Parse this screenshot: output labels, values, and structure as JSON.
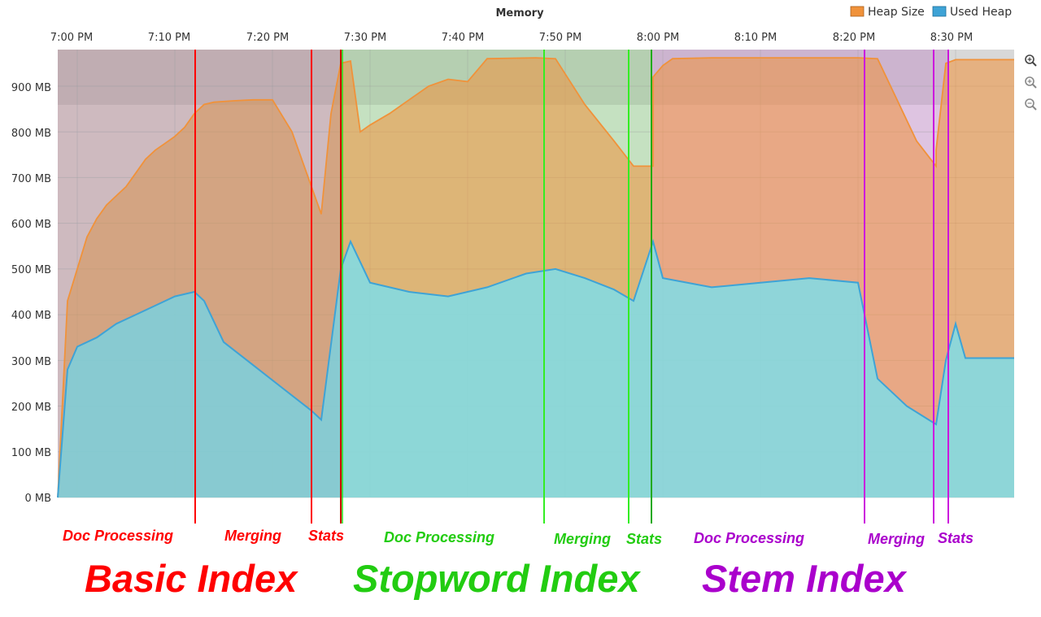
{
  "colors": {
    "heap": "#f0923a",
    "used": "#3ea3d6",
    "basic": "#ff0000",
    "stopword": "#22bb11",
    "stem": "#aa00cc"
  },
  "toolbar": {
    "icons": [
      "zoom-in-icon",
      "zoom-in-icon",
      "zoom-out-icon"
    ]
  },
  "chart_data": {
    "type": "area",
    "title": "Memory",
    "legend": [
      "Heap Size",
      "Used Heap"
    ],
    "legend_position": "top-right",
    "grid": true,
    "x_ticks": [
      "7:00 PM",
      "7:10 PM",
      "7:20 PM",
      "7:30 PM",
      "7:40 PM",
      "7:50 PM",
      "8:00 PM",
      "8:10 PM",
      "8:20 PM",
      "8:30 PM"
    ],
    "y_ticks": [
      "0 MB",
      "100 MB",
      "200 MB",
      "300 MB",
      "400 MB",
      "500 MB",
      "600 MB",
      "700 MB",
      "800 MB",
      "900 MB"
    ],
    "xlim": [
      "6:58 PM",
      "8:36 PM"
    ],
    "ylim": [
      0,
      980
    ],
    "y_unit": "MB",
    "series": [
      {
        "name": "Heap Size",
        "points": [
          [
            "6:58 PM",
            0
          ],
          [
            "6:59 PM",
            430
          ],
          [
            "7:00 PM",
            500
          ],
          [
            "7:01 PM",
            570
          ],
          [
            "7:02 PM",
            610
          ],
          [
            "7:03 PM",
            640
          ],
          [
            "7:04 PM",
            660
          ],
          [
            "7:05 PM",
            680
          ],
          [
            "7:06 PM",
            710
          ],
          [
            "7:07 PM",
            740
          ],
          [
            "7:08 PM",
            760
          ],
          [
            "7:09 PM",
            775
          ],
          [
            "7:10 PM",
            790
          ],
          [
            "7:11 PM",
            810
          ],
          [
            "7:12 PM",
            840
          ],
          [
            "7:13 PM",
            860
          ],
          [
            "7:14 PM",
            865
          ],
          [
            "7:16 PM",
            868
          ],
          [
            "7:18 PM",
            870
          ],
          [
            "7:20 PM",
            870
          ],
          [
            "7:22 PM",
            800
          ],
          [
            "7:23 PM",
            740
          ],
          [
            "7:24 PM",
            680
          ],
          [
            "7:25 PM",
            620
          ],
          [
            "7:26 PM",
            840
          ],
          [
            "7:27 PM",
            950
          ],
          [
            "7:28 PM",
            955
          ],
          [
            "7:29 PM",
            800
          ],
          [
            "7:30 PM",
            815
          ],
          [
            "7:32 PM",
            840
          ],
          [
            "7:34 PM",
            870
          ],
          [
            "7:36 PM",
            900
          ],
          [
            "7:38 PM",
            915
          ],
          [
            "7:40 PM",
            910
          ],
          [
            "7:42 PM",
            960
          ],
          [
            "7:47 PM",
            962
          ],
          [
            "7:49 PM",
            960
          ],
          [
            "7:52 PM",
            860
          ],
          [
            "7:55 PM",
            780
          ],
          [
            "7:57 PM",
            725
          ],
          [
            "7:59 PM",
            725
          ],
          [
            "7:59 PM",
            920
          ],
          [
            "8:00 PM",
            945
          ],
          [
            "8:01 PM",
            960
          ],
          [
            "8:05 PM",
            962
          ],
          [
            "8:20 PM",
            962
          ],
          [
            "8:22 PM",
            960
          ],
          [
            "8:24 PM",
            870
          ],
          [
            "8:26 PM",
            780
          ],
          [
            "8:28 PM",
            725
          ],
          [
            "8:28 PM",
            760
          ],
          [
            "8:29 PM",
            950
          ],
          [
            "8:30 PM",
            958
          ],
          [
            "8:36 PM",
            958
          ]
        ]
      },
      {
        "name": "Used Heap",
        "points": [
          [
            "6:58 PM",
            0
          ],
          [
            "6:59 PM",
            280
          ],
          [
            "7:00 PM",
            330
          ],
          [
            "7:02 PM",
            350
          ],
          [
            "7:04 PM",
            380
          ],
          [
            "7:06 PM",
            400
          ],
          [
            "7:08 PM",
            420
          ],
          [
            "7:10 PM",
            440
          ],
          [
            "7:12 PM",
            450
          ],
          [
            "7:13 PM",
            430
          ],
          [
            "7:15 PM",
            340
          ],
          [
            "7:18 PM",
            290
          ],
          [
            "7:21 PM",
            240
          ],
          [
            "7:24 PM",
            190
          ],
          [
            "7:25 PM",
            170
          ],
          [
            "7:27 PM",
            500
          ],
          [
            "7:28 PM",
            560
          ],
          [
            "7:30 PM",
            470
          ],
          [
            "7:34 PM",
            450
          ],
          [
            "7:38 PM",
            440
          ],
          [
            "7:42 PM",
            460
          ],
          [
            "7:46 PM",
            490
          ],
          [
            "7:49 PM",
            500
          ],
          [
            "7:52 PM",
            480
          ],
          [
            "7:55 PM",
            455
          ],
          [
            "7:57 PM",
            430
          ],
          [
            "7:59 PM",
            560
          ],
          [
            "8:00 PM",
            480
          ],
          [
            "8:05 PM",
            460
          ],
          [
            "8:10 PM",
            470
          ],
          [
            "8:15 PM",
            480
          ],
          [
            "8:20 PM",
            470
          ],
          [
            "8:22 PM",
            260
          ],
          [
            "8:25 PM",
            200
          ],
          [
            "8:28 PM",
            160
          ],
          [
            "8:29 PM",
            300
          ],
          [
            "8:30 PM",
            380
          ],
          [
            "8:31 PM",
            305
          ],
          [
            "8:36 PM",
            305
          ]
        ]
      }
    ],
    "phase_labels": [
      "Doc Processing",
      "Merging",
      "Stats",
      "Doc Processing",
      "Merging",
      "Stats",
      "Doc Processing",
      "Merging",
      "Stats"
    ],
    "section_labels": [
      "Basic Index",
      "Stopword Index",
      "Stem Index"
    ]
  }
}
